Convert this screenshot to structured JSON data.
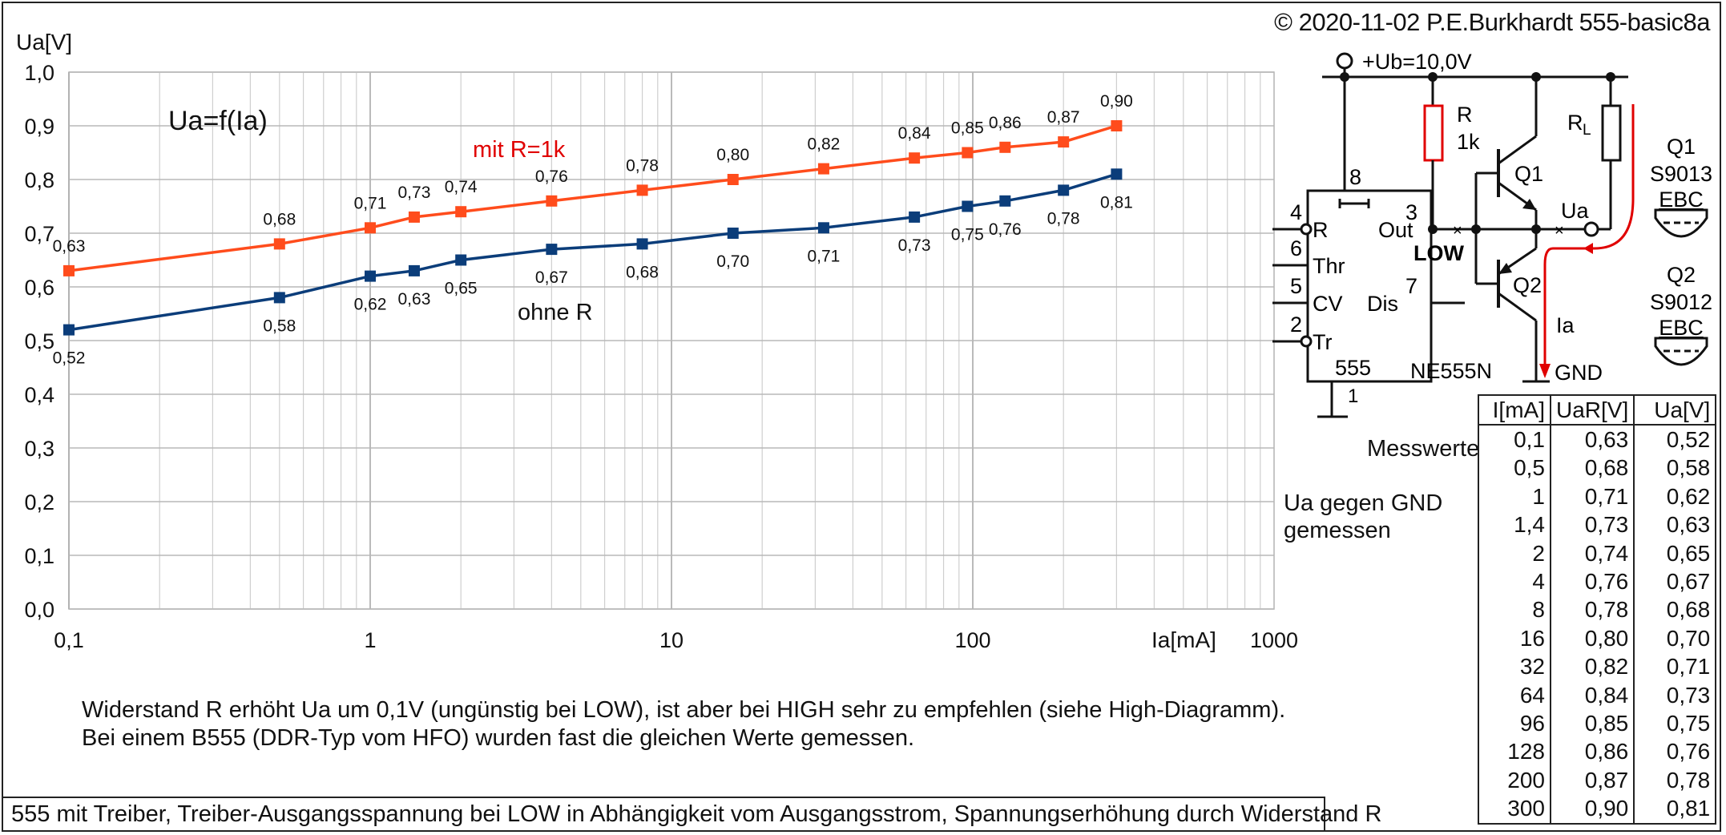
{
  "copyright": "© 2020-11-02 P.E.Burkhardt 555-basic8a",
  "chart_data": {
    "type": "line",
    "title": "Ua=f(Ia)",
    "xlabel": "Ia[mA]",
    "ylabel": "Ua[V]",
    "xscale": "log",
    "xlim": [
      0.1,
      1000
    ],
    "ylim": [
      0,
      1
    ],
    "grid": true,
    "x_ticks": [
      "0,1",
      "1",
      "10",
      "100",
      "1000"
    ],
    "y_ticks": [
      "0,0",
      "0,1",
      "0,2",
      "0,3",
      "0,4",
      "0,5",
      "0,6",
      "0,7",
      "0,8",
      "0,9",
      "1,0"
    ],
    "x": [
      0.1,
      0.5,
      1,
      1.4,
      2,
      4,
      8,
      16,
      32,
      64,
      96,
      128,
      200,
      300
    ],
    "series": [
      {
        "name": "mit R=1k",
        "color": "#ff4c1c",
        "label_color": "#e00000",
        "values": [
          0.63,
          0.68,
          0.71,
          0.73,
          0.74,
          0.76,
          0.78,
          0.8,
          0.82,
          0.84,
          0.85,
          0.86,
          0.87,
          0.9
        ],
        "labels": [
          "0,63",
          "0,68",
          "0,71",
          "0,73",
          "0,74",
          "0,76",
          "0,78",
          "0,80",
          "0,82",
          "0,84",
          "0,85",
          "0,86",
          "0,87",
          "0,90"
        ]
      },
      {
        "name": "ohne R",
        "color": "#0b3d7a",
        "label_color": "#111111",
        "values": [
          0.52,
          0.58,
          0.62,
          0.63,
          0.65,
          0.67,
          0.68,
          0.7,
          0.71,
          0.73,
          0.75,
          0.76,
          0.78,
          0.81
        ],
        "labels": [
          "0,52",
          "0,58",
          "0,62",
          "0,63",
          "0,65",
          "0,67",
          "0,68",
          "0,70",
          "0,71",
          "0,73",
          "0,75",
          "0,76",
          "0,78",
          "0,81"
        ]
      }
    ]
  },
  "notes": {
    "line1": "Widerstand R erhöht Ua um 0,1V (ungünstig bei LOW), ist aber bei HIGH sehr zu empfehlen (siehe High-Diagramm).",
    "line2": "Bei einem B555 (DDR-Typ vom HFO) wurden fast die gleichen Werte gemessen."
  },
  "measurement_note": {
    "line1": "Ua gegen GND",
    "line2": "gemessen"
  },
  "caption": "555 mit Treiber, Treiber-Ausgangsspannung bei LOW in Abhängigkeit vom Ausgangsstrom, Spannungserhöhung durch Widerstand R",
  "circuit": {
    "supply": "+Ub=10,0V",
    "ic_name": "555",
    "ic_type": "NE555N",
    "pins": {
      "reset_num": "4",
      "reset": "R",
      "thr_num": "6",
      "thr": "Thr",
      "cv_num": "5",
      "cv": "CV",
      "tr_num": "2",
      "tr": "Tr",
      "vcc_num": "8",
      "out_num": "3",
      "out": "Out",
      "dis_num": "7",
      "dis": "Dis",
      "gnd_num": "1"
    },
    "out_state": "LOW",
    "r_name": "R",
    "r_value": "1k",
    "rl_name": "R",
    "rl_sub": "L",
    "q1": "Q1",
    "q2": "Q2",
    "ua": "Ua",
    "ia": "Ia",
    "gnd": "GND",
    "q1_label": "Q1",
    "q1_type": "S9013",
    "q1_pins": "EBC",
    "q2_label": "Q2",
    "q2_type": "S9012",
    "q2_pins": "EBC"
  },
  "table": {
    "title": "Messwerte",
    "headers": [
      "I[mA]",
      "UaR[V]",
      "Ua[V]"
    ],
    "rows": [
      [
        "0,1",
        "0,63",
        "0,52"
      ],
      [
        "0,5",
        "0,68",
        "0,58"
      ],
      [
        "1",
        "0,71",
        "0,62"
      ],
      [
        "1,4",
        "0,73",
        "0,63"
      ],
      [
        "2",
        "0,74",
        "0,65"
      ],
      [
        "4",
        "0,76",
        "0,67"
      ],
      [
        "8",
        "0,78",
        "0,68"
      ],
      [
        "16",
        "0,80",
        "0,70"
      ],
      [
        "32",
        "0,82",
        "0,71"
      ],
      [
        "64",
        "0,84",
        "0,73"
      ],
      [
        "96",
        "0,85",
        "0,75"
      ],
      [
        "128",
        "0,86",
        "0,76"
      ],
      [
        "200",
        "0,87",
        "0,78"
      ],
      [
        "300",
        "0,90",
        "0,81"
      ]
    ]
  }
}
